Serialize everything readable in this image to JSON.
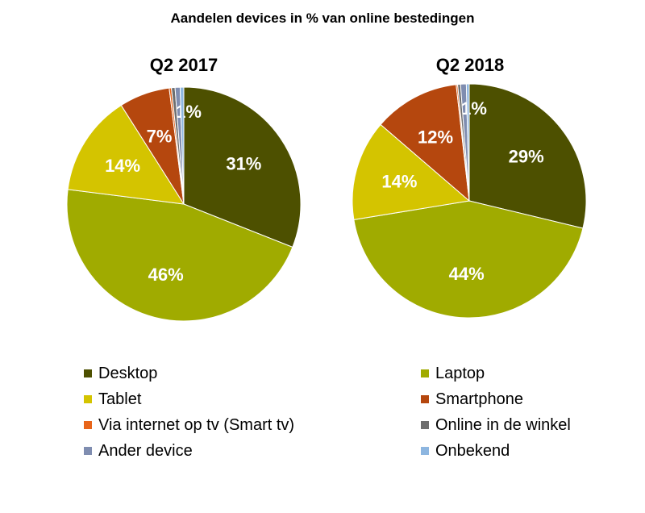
{
  "chart_data": {
    "type": "pie",
    "title": "Aandelen devices in % van online bestedingen",
    "categories": [
      "Desktop",
      "Laptop",
      "Tablet",
      "Smartphone",
      "Via internet op tv (Smart tv)",
      "Online in de winkel",
      "Ander device",
      "Onbekend"
    ],
    "colors": [
      "#4d5000",
      "#a0ab00",
      "#d4c400",
      "#b5470e",
      "#e8651a",
      "#6e6e6e",
      "#7f8db0",
      "#8db6e0"
    ],
    "legend_placement": "bottom",
    "pies": [
      {
        "name": "Q2 2017",
        "values": [
          31,
          46,
          14,
          7,
          0.3,
          0.5,
          0.7,
          0.5
        ],
        "labels": [
          "31%",
          "46%",
          "14%",
          "7%",
          "",
          "",
          "1%",
          ""
        ]
      },
      {
        "name": "Q2 2018",
        "values": [
          29,
          44,
          14,
          12,
          0.2,
          0.4,
          0.8,
          0.4
        ],
        "labels": [
          "29%",
          "44%",
          "14%",
          "12%",
          "",
          "",
          "1%",
          ""
        ]
      }
    ]
  }
}
